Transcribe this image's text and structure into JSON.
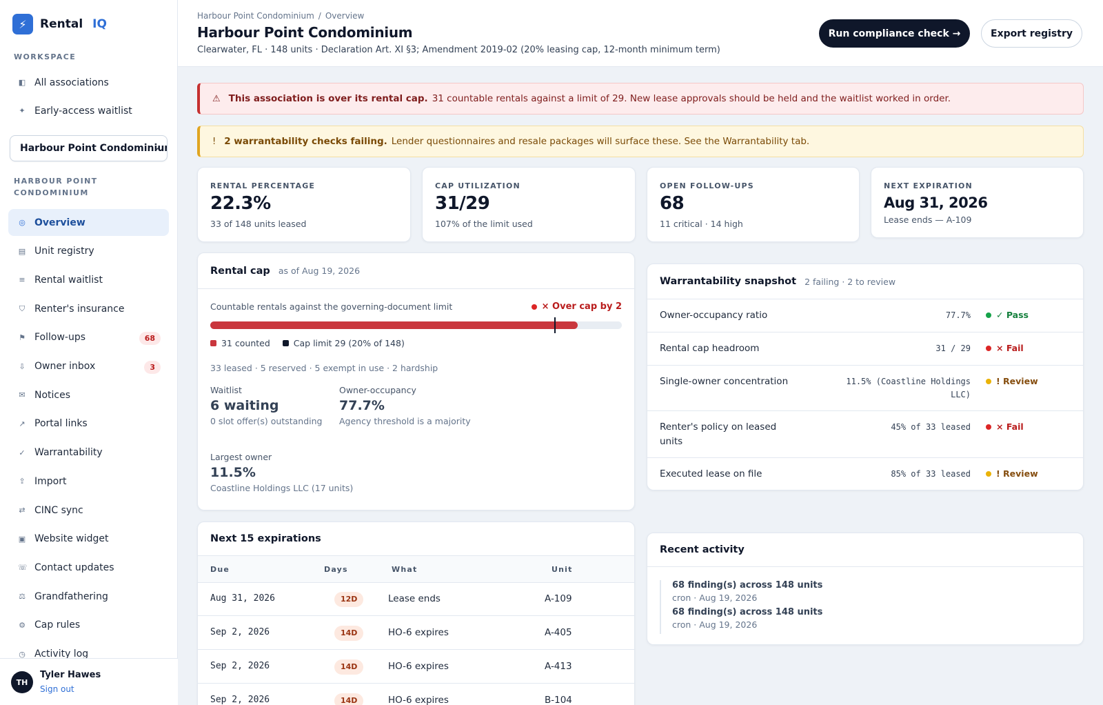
{
  "brand": {
    "name": "Rental",
    "suffix": "IQ"
  },
  "sidebar": {
    "workspace_label": "Workspace",
    "workspace_items": [
      {
        "label": "All associations",
        "icon": "panel-icon",
        "glyph": "◧"
      },
      {
        "label": "Early-access waitlist",
        "icon": "sparkle-icon",
        "glyph": "✦"
      }
    ],
    "association_select": "Harbour Point Condominium",
    "association_label": "Harbour Point Condominium",
    "items": [
      {
        "label": "Overview",
        "icon": "target-icon",
        "glyph": "◎",
        "active": true
      },
      {
        "label": "Unit registry",
        "icon": "registry-icon",
        "glyph": "▤"
      },
      {
        "label": "Rental waitlist",
        "icon": "list-icon",
        "glyph": "≡"
      },
      {
        "label": "Renter's insurance",
        "icon": "shield-icon",
        "glyph": "⛉"
      },
      {
        "label": "Follow-ups",
        "icon": "flag-icon",
        "glyph": "⚑",
        "badge": "68"
      },
      {
        "label": "Owner inbox",
        "icon": "inbox-icon",
        "glyph": "⇩",
        "badge": "3"
      },
      {
        "label": "Notices",
        "icon": "mail-icon",
        "glyph": "✉"
      },
      {
        "label": "Portal links",
        "icon": "link-arrow-icon",
        "glyph": "↗"
      },
      {
        "label": "Warrantability",
        "icon": "check-icon",
        "glyph": "✓"
      },
      {
        "label": "Import",
        "icon": "upload-icon",
        "glyph": "⇪"
      },
      {
        "label": "CINC sync",
        "icon": "sync-icon",
        "glyph": "⇄"
      },
      {
        "label": "Website widget",
        "icon": "widget-icon",
        "glyph": "▣"
      },
      {
        "label": "Contact updates",
        "icon": "phone-icon",
        "glyph": "☏"
      },
      {
        "label": "Grandfathering",
        "icon": "scale-icon",
        "glyph": "⚖"
      },
      {
        "label": "Cap rules",
        "icon": "gear-icon",
        "glyph": "⚙"
      },
      {
        "label": "Activity log",
        "icon": "clock-icon",
        "glyph": "◷"
      }
    ],
    "user": {
      "initials": "TH",
      "name": "Tyler Hawes",
      "sign_out": "Sign out"
    }
  },
  "header": {
    "breadcrumb": [
      "Harbour Point Condominium",
      "Overview"
    ],
    "breadcrumb_sep": "/",
    "title": "Harbour Point Condominium",
    "subtitle": "Clearwater, FL · 148 units · Declaration Art. XI §3; Amendment 2019-02 (20% leasing cap, 12-month minimum term)",
    "run_check": "Run compliance check →",
    "export": "Export registry"
  },
  "banners": {
    "danger": {
      "icon": "⚠",
      "strong": "This association is over its rental cap.",
      "text": "31 countable rentals against a limit of 29. New lease approvals should be held and the waitlist worked in order."
    },
    "warning": {
      "icon": "!",
      "strong": "2 warrantability checks failing.",
      "text": "Lender questionnaires and resale packages will surface these. See the Warrantability tab."
    }
  },
  "stats": [
    {
      "label": "Rental percentage",
      "value": "22.3%",
      "sub": "33 of 148 units leased"
    },
    {
      "label": "Cap utilization",
      "value": "31/29",
      "sub": "107% of the limit used"
    },
    {
      "label": "Open follow-ups",
      "value": "68",
      "sub": "11 critical · 14 high"
    },
    {
      "label": "Next expiration",
      "value": "Aug 31, 2026",
      "sub": "Lease ends — A-109"
    }
  ],
  "rental_cap": {
    "title": "Rental cap",
    "as_of": "as of Aug 19, 2026",
    "description": "Countable rentals against the governing-document limit",
    "status": "× Over cap by 2",
    "counted": 31,
    "limit": 29,
    "total_units": 148,
    "legend_counted": "31 counted",
    "legend_limit": "Cap limit 29 (20% of 148)",
    "counts_line": "33 leased · 5 reserved · 5 exempt in use · 2 hardship",
    "waitlist": {
      "label": "Waitlist",
      "value": "6 waiting",
      "sub": "0 slot offer(s) outstanding"
    },
    "owner_occupancy": {
      "label": "Owner-occupancy",
      "value": "77.7%",
      "sub": "Agency threshold is a majority"
    },
    "largest_owner": {
      "label": "Largest owner",
      "value": "11.5%",
      "sub": "Coastline Holdings LLC (17 units)"
    },
    "colors": {
      "counted": "#c9363d",
      "limit": "#0f172a",
      "track": "#e8edf3"
    }
  },
  "warrantability": {
    "title": "Warrantability snapshot",
    "meta": "2 failing · 2 to review",
    "rows": [
      {
        "name": "Owner-occupancy ratio",
        "value": "77.7%",
        "status": "✓ Pass",
        "kind": "pass"
      },
      {
        "name": "Rental cap headroom",
        "value": "31 / 29",
        "status": "× Fail",
        "kind": "fail"
      },
      {
        "name": "Single-owner concentration",
        "value": "11.5% (Coastline Holdings LLC)",
        "status": "! Review",
        "kind": "review"
      },
      {
        "name": "Renter's policy on leased units",
        "value": "45% of 33 leased",
        "status": "× Fail",
        "kind": "fail"
      },
      {
        "name": "Executed lease on file",
        "value": "85% of 33 leased",
        "status": "! Review",
        "kind": "review"
      }
    ],
    "colors": {
      "pass": "#16a34a",
      "fail": "#dc2626",
      "review": "#eab308"
    }
  },
  "expirations": {
    "title": "Next 15 expirations",
    "columns": [
      "Due",
      "Days",
      "What",
      "Unit"
    ],
    "rows": [
      {
        "due": "Aug 31, 2026",
        "days": "12D",
        "what": "Lease ends",
        "unit": "A-109"
      },
      {
        "due": "Sep 2, 2026",
        "days": "14D",
        "what": "HO-6 expires",
        "unit": "A-405"
      },
      {
        "due": "Sep 2, 2026",
        "days": "14D",
        "what": "HO-6 expires",
        "unit": "A-413"
      },
      {
        "due": "Sep 2, 2026",
        "days": "14D",
        "what": "HO-6 expires",
        "unit": "B-104"
      }
    ]
  },
  "activity": {
    "title": "Recent activity",
    "items": [
      {
        "title": "68 finding(s) across 148 units",
        "meta": "cron · Aug 19, 2026"
      },
      {
        "title": "68 finding(s) across 148 units",
        "meta": "cron · Aug 19, 2026"
      }
    ]
  }
}
